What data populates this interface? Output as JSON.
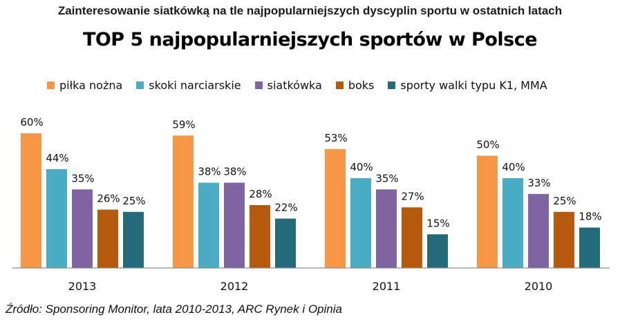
{
  "chart_data": {
    "type": "bar",
    "supertitle": "Zainteresowanie siatkówką na tle najpopularniejszych dyscyplin sportu w ostatnich latach",
    "title": "TOP 5 najpopularniejszych sportów w Polsce",
    "categories": [
      "2013",
      "2012",
      "2011",
      "2010"
    ],
    "series": [
      {
        "name": "piłka nożna",
        "color": "#F79646",
        "values": [
          60,
          59,
          53,
          50
        ],
        "labels": [
          "60%",
          "59%",
          "53%",
          "50%"
        ]
      },
      {
        "name": "skoki narciarskie",
        "color": "#4BACC6",
        "values": [
          44,
          38,
          40,
          40
        ],
        "labels": [
          "44%",
          "38%",
          "40%",
          "40%"
        ]
      },
      {
        "name": "siatkówka",
        "color": "#8064A2",
        "values": [
          35,
          38,
          35,
          33
        ],
        "labels": [
          "35%",
          "38%",
          "35%",
          "33%"
        ]
      },
      {
        "name": "boks",
        "color": "#B55A0C",
        "values": [
          26,
          28,
          27,
          25
        ],
        "labels": [
          "26%",
          "28%",
          "27%",
          "25%"
        ]
      },
      {
        "name": "sporty walki typu K1, MMA",
        "color": "#236A7A",
        "values": [
          25,
          22,
          15,
          18
        ],
        "labels": [
          "25%",
          "22%",
          "15%",
          "18%"
        ]
      }
    ],
    "ylim": [
      0,
      60
    ],
    "grid": false,
    "legend_position": "top",
    "source": "Źródło: Sponsoring Monitor, lata 2010-2013, ARC Rynek i Opinia"
  }
}
